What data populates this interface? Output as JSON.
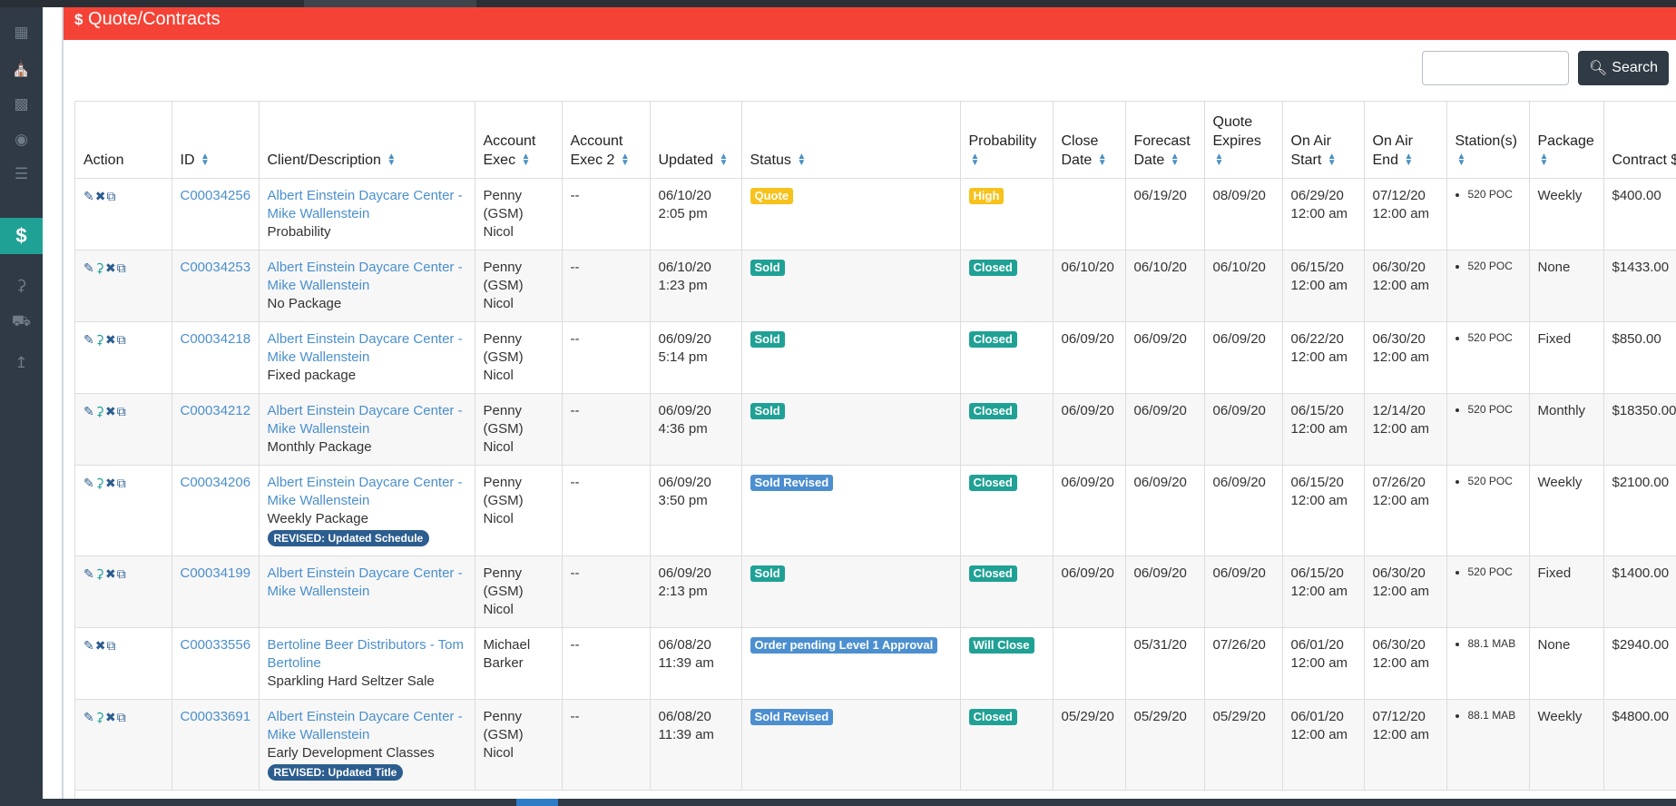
{
  "header": {
    "title": "Quote/Contracts",
    "icon": "dollar-icon"
  },
  "sidebar": {
    "items": [
      {
        "icon": "building-icon"
      },
      {
        "icon": "bank-icon"
      },
      {
        "icon": "id-card-icon"
      },
      {
        "icon": "user-circle-icon"
      },
      {
        "icon": "list-icon"
      },
      {
        "icon": "dollar-icon",
        "active": true
      },
      {
        "icon": "microphone-icon"
      },
      {
        "icon": "car-icon"
      },
      {
        "icon": "line-chart-icon"
      }
    ]
  },
  "search": {
    "value": "",
    "button_label": "Search"
  },
  "table": {
    "columns": [
      "Action",
      "ID",
      "Client/Description",
      "Account Exec",
      "Account Exec 2",
      "Updated",
      "Status",
      "Probability",
      "Close Date",
      "Forecast Date",
      "Quote Expires",
      "On Air Start",
      "On Air End",
      "Station(s)",
      "Package",
      "Contract $"
    ],
    "rows": [
      {
        "mic": false,
        "id": "C00034256",
        "client": "Albert Einstein Daycare Center - Mike Wallenstein",
        "desc": "Probability",
        "revised": "",
        "ae": "Penny (GSM) Nicol",
        "ae2": "--",
        "updated_date": "06/10/20",
        "updated_time": "2:05 pm",
        "status": "Quote",
        "status_color": "yellow",
        "prob": "High",
        "prob_color": "yellow",
        "close": "",
        "forecast": "06/19/20",
        "expires": "08/09/20",
        "start_date": "06/29/20",
        "start_time": "12:00 am",
        "end_date": "07/12/20",
        "end_time": "12:00 am",
        "station": "520 POC",
        "package": "Weekly",
        "contract": "$400.00"
      },
      {
        "mic": true,
        "id": "C00034253",
        "client": "Albert Einstein Daycare Center - Mike Wallenstein",
        "desc": "No Package",
        "revised": "",
        "ae": "Penny (GSM) Nicol",
        "ae2": "--",
        "updated_date": "06/10/20",
        "updated_time": "1:23 pm",
        "status": "Sold",
        "status_color": "green",
        "prob": "Closed",
        "prob_color": "green",
        "close": "06/10/20",
        "forecast": "06/10/20",
        "expires": "06/10/20",
        "start_date": "06/15/20",
        "start_time": "12:00 am",
        "end_date": "06/30/20",
        "end_time": "12:00 am",
        "station": "520 POC",
        "package": "None",
        "contract": "$1433.00"
      },
      {
        "mic": true,
        "id": "C00034218",
        "client": "Albert Einstein Daycare Center - Mike Wallenstein",
        "desc": "Fixed package",
        "revised": "",
        "ae": "Penny (GSM) Nicol",
        "ae2": "--",
        "updated_date": "06/09/20",
        "updated_time": "5:14 pm",
        "status": "Sold",
        "status_color": "green",
        "prob": "Closed",
        "prob_color": "green",
        "close": "06/09/20",
        "forecast": "06/09/20",
        "expires": "06/09/20",
        "start_date": "06/22/20",
        "start_time": "12:00 am",
        "end_date": "06/30/20",
        "end_time": "12:00 am",
        "station": "520 POC",
        "package": "Fixed",
        "contract": "$850.00"
      },
      {
        "mic": true,
        "id": "C00034212",
        "client": "Albert Einstein Daycare Center - Mike Wallenstein",
        "desc": "Monthly Package",
        "revised": "",
        "ae": "Penny (GSM) Nicol",
        "ae2": "--",
        "updated_date": "06/09/20",
        "updated_time": "4:36 pm",
        "status": "Sold",
        "status_color": "green",
        "prob": "Closed",
        "prob_color": "green",
        "close": "06/09/20",
        "forecast": "06/09/20",
        "expires": "06/09/20",
        "start_date": "06/15/20",
        "start_time": "12:00 am",
        "end_date": "12/14/20",
        "end_time": "12:00 am",
        "station": "520 POC",
        "package": "Monthly",
        "contract": "$18350.00"
      },
      {
        "mic": true,
        "id": "C00034206",
        "client": "Albert Einstein Daycare Center - Mike Wallenstein",
        "desc": "Weekly Package",
        "revised": "REVISED: Updated Schedule",
        "ae": "Penny (GSM) Nicol",
        "ae2": "--",
        "updated_date": "06/09/20",
        "updated_time": "3:50 pm",
        "status": "Sold Revised",
        "status_color": "blue",
        "prob": "Closed",
        "prob_color": "green",
        "close": "06/09/20",
        "forecast": "06/09/20",
        "expires": "06/09/20",
        "start_date": "06/15/20",
        "start_time": "12:00 am",
        "end_date": "07/26/20",
        "end_time": "12:00 am",
        "station": "520 POC",
        "package": "Weekly",
        "contract": "$2100.00"
      },
      {
        "mic": true,
        "id": "C00034199",
        "client": "Albert Einstein Daycare Center - Mike Wallenstein",
        "desc": "",
        "revised": "",
        "ae": "Penny (GSM) Nicol",
        "ae2": "--",
        "updated_date": "06/09/20",
        "updated_time": "2:13 pm",
        "status": "Sold",
        "status_color": "green",
        "prob": "Closed",
        "prob_color": "green",
        "close": "06/09/20",
        "forecast": "06/09/20",
        "expires": "06/09/20",
        "start_date": "06/15/20",
        "start_time": "12:00 am",
        "end_date": "06/30/20",
        "end_time": "12:00 am",
        "station": "520 POC",
        "package": "Fixed",
        "contract": "$1400.00"
      },
      {
        "mic": false,
        "id": "C00033556",
        "client": "Bertoline Beer Distributors - Tom Bertoline",
        "desc": "Sparkling Hard Seltzer Sale",
        "revised": "",
        "ae": "Michael Barker",
        "ae2": "--",
        "updated_date": "06/08/20",
        "updated_time": "11:39 am",
        "status": "Order pending Level 1 Approval",
        "status_color": "blue",
        "prob": "Will Close",
        "prob_color": "green",
        "close": "",
        "forecast": "05/31/20",
        "expires": "07/26/20",
        "start_date": "06/01/20",
        "start_time": "12:00 am",
        "end_date": "06/30/20",
        "end_time": "12:00 am",
        "station": "88.1 MAB",
        "package": "None",
        "contract": "$2940.00"
      },
      {
        "mic": true,
        "id": "C00033691",
        "client": "Albert Einstein Daycare Center - Mike Wallenstein",
        "desc": "Early Development Classes",
        "revised": "REVISED: Updated Title",
        "ae": "Penny (GSM) Nicol",
        "ae2": "--",
        "updated_date": "06/08/20",
        "updated_time": "11:39 am",
        "status": "Sold Revised",
        "status_color": "blue",
        "prob": "Closed",
        "prob_color": "green",
        "close": "05/29/20",
        "forecast": "05/29/20",
        "expires": "05/29/20",
        "start_date": "06/01/20",
        "start_time": "12:00 am",
        "end_date": "07/12/20",
        "end_time": "12:00 am",
        "station": "88.1 MAB",
        "package": "Weekly",
        "contract": "$4800.00"
      }
    ]
  }
}
